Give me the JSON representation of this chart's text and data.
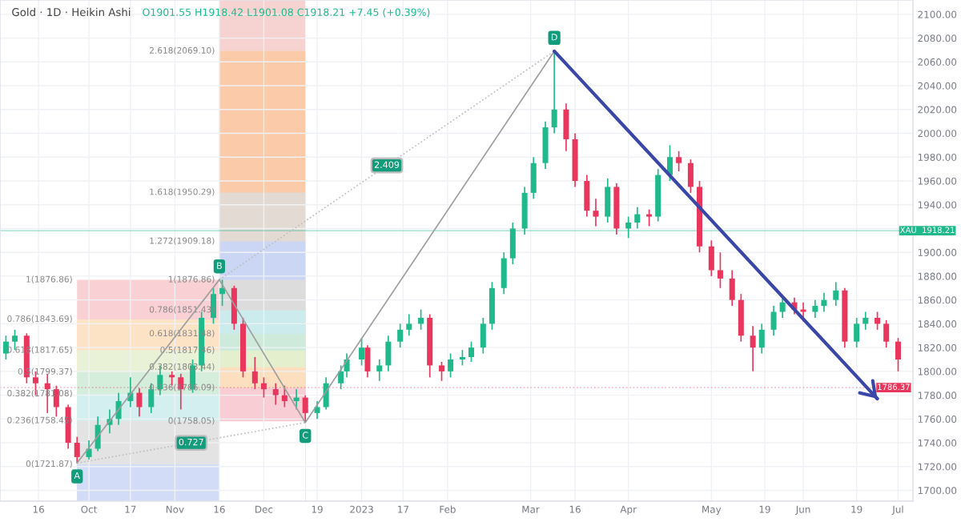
{
  "chart_data": {
    "type": "candlestick",
    "title": "Gold · 1D · Heikin Ashi",
    "subtitle": "O1901.55 H1918.42 L1901.08 C1918.21 +7.45 (+0.39%)",
    "x": [
      "2022-09-05",
      "2022-09-08",
      "2022-09-12",
      "2022-09-15",
      "2022-09-19",
      "2022-09-22",
      "2022-09-26",
      "2022-09-29",
      "2022-10-03",
      "2022-10-06",
      "2022-10-10",
      "2022-10-13",
      "2022-10-17",
      "2022-10-20",
      "2022-10-24",
      "2022-10-27",
      "2022-10-31",
      "2022-11-03",
      "2022-11-07",
      "2022-11-10",
      "2022-11-14",
      "2022-11-17",
      "2022-11-21",
      "2022-11-24",
      "2022-11-28",
      "2022-12-01",
      "2022-12-05",
      "2022-12-08",
      "2022-12-12",
      "2022-12-15",
      "2022-12-19",
      "2022-12-22",
      "2022-12-27",
      "2022-12-29",
      "2023-01-03",
      "2023-01-05",
      "2023-01-09",
      "2023-01-12",
      "2023-01-16",
      "2023-01-19",
      "2023-01-23",
      "2023-01-26",
      "2023-01-30",
      "2023-02-02",
      "2023-02-06",
      "2023-02-09",
      "2023-02-13",
      "2023-02-16",
      "2023-02-20",
      "2023-02-23",
      "2023-02-27",
      "2023-03-02",
      "2023-03-06",
      "2023-03-09",
      "2023-03-13",
      "2023-03-16",
      "2023-03-20",
      "2023-03-23",
      "2023-03-27",
      "2023-03-30",
      "2023-04-03",
      "2023-04-06",
      "2023-04-10",
      "2023-04-13",
      "2023-04-17",
      "2023-04-20",
      "2023-04-24",
      "2023-04-27",
      "2023-05-01",
      "2023-05-04",
      "2023-05-08",
      "2023-05-11",
      "2023-05-15",
      "2023-05-18",
      "2023-05-22",
      "2023-05-25",
      "2023-05-29",
      "2023-06-01",
      "2023-06-05",
      "2023-06-08",
      "2023-06-12",
      "2023-06-15",
      "2023-06-19",
      "2023-06-22",
      "2023-06-26",
      "2023-06-29",
      "2023-07-03"
    ],
    "ohlc": [
      [
        1815,
        1830,
        1810,
        1825
      ],
      [
        1825,
        1835,
        1818,
        1830
      ],
      [
        1830,
        1832,
        1790,
        1795
      ],
      [
        1795,
        1800,
        1780,
        1790
      ],
      [
        1790,
        1798,
        1765,
        1785
      ],
      [
        1785,
        1788,
        1762,
        1770
      ],
      [
        1770,
        1772,
        1735,
        1740
      ],
      [
        1740,
        1745,
        1723,
        1728
      ],
      [
        1728,
        1742,
        1726,
        1735
      ],
      [
        1735,
        1762,
        1733,
        1755
      ],
      [
        1755,
        1768,
        1748,
        1760
      ],
      [
        1760,
        1782,
        1755,
        1775
      ],
      [
        1775,
        1795,
        1770,
        1782
      ],
      [
        1782,
        1786,
        1762,
        1770
      ],
      [
        1770,
        1790,
        1765,
        1785
      ],
      [
        1785,
        1805,
        1780,
        1797
      ],
      [
        1797,
        1800,
        1788,
        1795
      ],
      [
        1795,
        1798,
        1768,
        1785
      ],
      [
        1785,
        1810,
        1782,
        1805
      ],
      [
        1805,
        1850,
        1800,
        1845
      ],
      [
        1845,
        1870,
        1840,
        1865
      ],
      [
        1865,
        1877,
        1855,
        1870
      ],
      [
        1870,
        1872,
        1835,
        1840
      ],
      [
        1840,
        1845,
        1795,
        1800
      ],
      [
        1800,
        1812,
        1785,
        1790
      ],
      [
        1790,
        1795,
        1778,
        1785
      ],
      [
        1785,
        1790,
        1772,
        1780
      ],
      [
        1780,
        1788,
        1770,
        1775
      ],
      [
        1775,
        1785,
        1768,
        1778
      ],
      [
        1778,
        1780,
        1757,
        1765
      ],
      [
        1765,
        1775,
        1760,
        1770
      ],
      [
        1770,
        1795,
        1768,
        1790
      ],
      [
        1790,
        1805,
        1785,
        1800
      ],
      [
        1800,
        1815,
        1795,
        1810
      ],
      [
        1810,
        1828,
        1805,
        1820
      ],
      [
        1820,
        1822,
        1795,
        1800
      ],
      [
        1800,
        1810,
        1792,
        1805
      ],
      [
        1805,
        1830,
        1800,
        1825
      ],
      [
        1825,
        1840,
        1820,
        1835
      ],
      [
        1835,
        1848,
        1830,
        1840
      ],
      [
        1840,
        1852,
        1835,
        1845
      ],
      [
        1845,
        1848,
        1795,
        1805
      ],
      [
        1805,
        1808,
        1792,
        1800
      ],
      [
        1800,
        1815,
        1795,
        1810
      ],
      [
        1810,
        1818,
        1805,
        1812
      ],
      [
        1812,
        1825,
        1808,
        1820
      ],
      [
        1820,
        1845,
        1815,
        1840
      ],
      [
        1840,
        1875,
        1835,
        1870
      ],
      [
        1870,
        1900,
        1865,
        1895
      ],
      [
        1895,
        1925,
        1890,
        1920
      ],
      [
        1920,
        1955,
        1915,
        1950
      ],
      [
        1950,
        1980,
        1945,
        1975
      ],
      [
        1975,
        2010,
        1970,
        2005
      ],
      [
        2005,
        2069,
        2000,
        2020
      ],
      [
        2020,
        2025,
        1985,
        1995
      ],
      [
        1995,
        2000,
        1955,
        1960
      ],
      [
        1960,
        1965,
        1930,
        1935
      ],
      [
        1935,
        1945,
        1922,
        1930
      ],
      [
        1930,
        1962,
        1925,
        1955
      ],
      [
        1955,
        1958,
        1915,
        1920
      ],
      [
        1920,
        1930,
        1912,
        1925
      ],
      [
        1925,
        1938,
        1920,
        1932
      ],
      [
        1932,
        1936,
        1922,
        1930
      ],
      [
        1930,
        1970,
        1926,
        1965
      ],
      [
        1965,
        1990,
        1960,
        1980
      ],
      [
        1980,
        1985,
        1968,
        1975
      ],
      [
        1975,
        1978,
        1950,
        1955
      ],
      [
        1955,
        1960,
        1900,
        1905
      ],
      [
        1905,
        1910,
        1880,
        1885
      ],
      [
        1885,
        1900,
        1870,
        1878
      ],
      [
        1878,
        1885,
        1855,
        1860
      ],
      [
        1860,
        1865,
        1825,
        1830
      ],
      [
        1830,
        1838,
        1800,
        1820
      ],
      [
        1820,
        1840,
        1815,
        1835
      ],
      [
        1835,
        1855,
        1830,
        1850
      ],
      [
        1850,
        1862,
        1845,
        1858
      ],
      [
        1858,
        1862,
        1848,
        1852
      ],
      [
        1852,
        1858,
        1842,
        1850
      ],
      [
        1850,
        1860,
        1845,
        1855
      ],
      [
        1855,
        1866,
        1850,
        1860
      ],
      [
        1860,
        1875,
        1855,
        1868
      ],
      [
        1868,
        1870,
        1820,
        1825
      ],
      [
        1825,
        1845,
        1820,
        1840
      ],
      [
        1840,
        1850,
        1835,
        1845
      ],
      [
        1845,
        1850,
        1835,
        1840
      ],
      [
        1840,
        1843,
        1820,
        1825
      ],
      [
        1825,
        1828,
        1800,
        1810
      ]
    ],
    "colors": [
      "#1fb98c",
      "#1fb98c",
      "#e8365d",
      "#e8365d",
      "#e8365d",
      "#e8365d",
      "#e8365d",
      "#e8365d",
      "#1fb98c",
      "#1fb98c",
      "#1fb98c",
      "#1fb98c",
      "#1fb98c",
      "#e8365d",
      "#1fb98c",
      "#1fb98c",
      "#e8365d",
      "#e8365d",
      "#1fb98c",
      "#1fb98c",
      "#1fb98c",
      "#1fb98c",
      "#e8365d",
      "#e8365d",
      "#e8365d",
      "#e8365d",
      "#e8365d",
      "#e8365d",
      "#1fb98c",
      "#e8365d",
      "#1fb98c",
      "#1fb98c",
      "#1fb98c",
      "#1fb98c",
      "#1fb98c",
      "#e8365d",
      "#1fb98c",
      "#1fb98c",
      "#1fb98c",
      "#1fb98c",
      "#1fb98c",
      "#e8365d",
      "#e8365d",
      "#1fb98c",
      "#1fb98c",
      "#1fb98c",
      "#1fb98c",
      "#1fb98c",
      "#1fb98c",
      "#1fb98c",
      "#1fb98c",
      "#1fb98c",
      "#1fb98c",
      "#1fb98c",
      "#e8365d",
      "#e8365d",
      "#e8365d",
      "#e8365d",
      "#1fb98c",
      "#e8365d",
      "#1fb98c",
      "#1fb98c",
      "#e8365d",
      "#1fb98c",
      "#1fb98c",
      "#e8365d",
      "#e8365d",
      "#e8365d",
      "#e8365d",
      "#e8365d",
      "#e8365d",
      "#e8365d",
      "#e8365d",
      "#1fb98c",
      "#1fb98c",
      "#1fb98c",
      "#e8365d",
      "#e8365d",
      "#1fb98c",
      "#1fb98c",
      "#1fb98c",
      "#e8365d",
      "#1fb98c",
      "#1fb98c",
      "#e8365d",
      "#e8365d",
      "#e8365d"
    ],
    "series": [
      {
        "type": "area",
        "name": "1(1876.86)",
        "x": [
          "2022-09-29",
          "2022-11-16"
        ],
        "values": [
          1876.86,
          1876.86
        ],
        "color": "#f9d0d3"
      },
      {
        "type": "area",
        "name": "0.786(1843.69)",
        "x": [
          "2022-09-29",
          "2022-11-16"
        ],
        "values": [
          1843.69,
          1843.69
        ],
        "color": "#fde3c6"
      },
      {
        "type": "area",
        "name": "0.618(1817.65)",
        "x": [
          "2022-09-29",
          "2022-11-16"
        ],
        "values": [
          1817.65,
          1817.65
        ],
        "color": "#e9f2d6"
      },
      {
        "type": "area",
        "name": "0.5(1799.37)",
        "x": [
          "2022-09-29",
          "2022-11-16"
        ],
        "values": [
          1799.37,
          1799.37
        ],
        "color": "#d5eedb"
      },
      {
        "type": "area",
        "name": "0.382(1781.08)",
        "x": [
          "2022-09-29",
          "2022-11-16"
        ],
        "values": [
          1781.08,
          1781.08
        ],
        "color": "#d3efef"
      },
      {
        "type": "area",
        "name": "0.236(1758.45)",
        "x": [
          "2022-09-29",
          "2022-11-16"
        ],
        "values": [
          1758.45,
          1758.45
        ],
        "color": "#e3e3e3"
      },
      {
        "type": "area",
        "name": "0(1721.87)",
        "x": [
          "2022-09-29",
          "2022-11-16"
        ],
        "values": [
          1721.87,
          1721.87
        ],
        "color": "#d3dcf7"
      },
      {
        "type": "area",
        "x": [
          "2022-11-16",
          "2022-12-15"
        ],
        "values": [
          2112,
          2112
        ],
        "color": "#f6d2d0"
      },
      {
        "type": "area",
        "name": "2.618(2069.10)",
        "x": [
          "2022-11-16",
          "2022-12-15"
        ],
        "values": [
          2069.1,
          2069.1
        ],
        "color": "#fbcaa9"
      },
      {
        "type": "area",
        "name": "1.618(1950.29)",
        "x": [
          "2022-11-16",
          "2022-12-15"
        ],
        "values": [
          1950.29,
          1950.29
        ],
        "color": "#e2dad3"
      },
      {
        "type": "area",
        "name": "1.272(1909.18)",
        "x": [
          "2022-11-16",
          "2022-12-15"
        ],
        "values": [
          1909.18,
          1909.18
        ],
        "color": "#cbd6f5"
      },
      {
        "type": "area",
        "name": "1(1876.86)",
        "x": [
          "2022-11-16",
          "2022-12-15"
        ],
        "values": [
          1876.86,
          1876.86
        ],
        "color": "#dcdcdc"
      },
      {
        "type": "area",
        "name": "0.786(1851.43)",
        "x": [
          "2022-11-16",
          "2022-12-15"
        ],
        "values": [
          1851.43,
          1851.43
        ],
        "color": "#cbebed"
      },
      {
        "type": "area",
        "name": "0.618(1831.48)",
        "x": [
          "2022-11-16",
          "2022-12-15"
        ],
        "values": [
          1831.48,
          1831.48
        ],
        "color": "#cdeada"
      },
      {
        "type": "area",
        "name": "0.5(1817.46)",
        "x": [
          "2022-11-16",
          "2022-12-15"
        ],
        "values": [
          1817.46,
          1817.46
        ],
        "color": "#e3efcd"
      },
      {
        "type": "area",
        "name": "0.382(1803.44)",
        "x": [
          "2022-11-16",
          "2022-12-15"
        ],
        "values": [
          1803.44,
          1803.44
        ],
        "color": "#fbdfbe"
      },
      {
        "type": "area",
        "name": "0.236(1786.09)",
        "x": [
          "2022-11-16",
          "2022-12-15"
        ],
        "values": [
          1786.09,
          1786.09
        ],
        "color": "#f8cdd3"
      },
      {
        "type": "area",
        "name": "0(1758.05)",
        "x": [
          "2022-11-16",
          "2022-12-15"
        ],
        "values": [
          1758.05,
          1758.05
        ],
        "color": "#ffffff"
      },
      {
        "type": "line",
        "name": "0.727",
        "x": [
          "2022-09-29",
          "2022-12-15"
        ],
        "values": [
          1723,
          1757
        ],
        "color": "#bdbdbd",
        "line_style": "dotted"
      },
      {
        "type": "line",
        "name": "2.409",
        "x": [
          "2022-11-16",
          "2023-03-09"
        ],
        "values": [
          1877,
          2069
        ],
        "color": "#bdbdbd",
        "line_style": "dotted"
      },
      {
        "type": "line",
        "x": [
          "2022-09-29",
          "2022-11-16",
          "2022-12-15",
          "2023-03-09"
        ],
        "values": [
          1723,
          1877,
          1757,
          2069
        ],
        "color": "#9e9e9e",
        "line_style": "solid",
        "value_labels": [
          "A",
          "B",
          "C",
          "D"
        ]
      },
      {
        "type": "line",
        "x": [
          "2023-03-09",
          "2023-06-26"
        ],
        "values": [
          2069,
          1777
        ],
        "color": "#3a46a8",
        "line_style": "solid"
      }
    ],
    "ref_lines": [
      {
        "axis": "y",
        "value": 1918.21,
        "label": "XAU  1918.21",
        "color": "#1fb98c",
        "line_style": "solid"
      },
      {
        "axis": "y",
        "value": 1786.37,
        "label": "1786.37",
        "color": "#e8365d",
        "line_style": "dotted"
      }
    ],
    "xlim": [
      "2022-09-03",
      "2023-07-08"
    ],
    "xticks": [
      {
        "value": "2022-09-16",
        "label": "16"
      },
      {
        "value": "2022-10-03",
        "label": "Oct"
      },
      {
        "value": "2022-10-17",
        "label": "17"
      },
      {
        "value": "2022-11-01",
        "label": "Nov"
      },
      {
        "value": "2022-11-16",
        "label": "16"
      },
      {
        "value": "2022-12-01",
        "label": "Dec"
      },
      {
        "value": "2022-12-19",
        "label": "19"
      },
      {
        "value": "2023-01-03",
        "label": "2023"
      },
      {
        "value": "2023-01-17",
        "label": "17"
      },
      {
        "value": "2023-02-01",
        "label": "Feb"
      },
      {
        "value": "2023-03-01",
        "label": "Mar"
      },
      {
        "value": "2023-03-16",
        "label": "16"
      },
      {
        "value": "2023-04-03",
        "label": "Apr"
      },
      {
        "value": "2023-05-01",
        "label": "May"
      },
      {
        "value": "2023-05-19",
        "label": "19"
      },
      {
        "value": "2023-06-01",
        "label": "Jun"
      },
      {
        "value": "2023-06-19",
        "label": "19"
      },
      {
        "value": "2023-07-03",
        "label": "Jul"
      }
    ],
    "ylim": [
      1691,
      2112
    ],
    "yticks": [
      {
        "value": 1700,
        "label": "1700.00"
      },
      {
        "value": 1720,
        "label": "1720.00"
      },
      {
        "value": 1740,
        "label": "1740.00"
      },
      {
        "value": 1760,
        "label": "1760.00"
      },
      {
        "value": 1780,
        "label": "1780.00"
      },
      {
        "value": 1800,
        "label": "1800.00"
      },
      {
        "value": 1820,
        "label": "1820.00"
      },
      {
        "value": 1840,
        "label": "1840.00"
      },
      {
        "value": 1860,
        "label": "1860.00"
      },
      {
        "value": 1880,
        "label": "1880.00"
      },
      {
        "value": 1900,
        "label": "1900.00"
      },
      {
        "value": 1920,
        "label": null
      },
      {
        "value": 1940,
        "label": "1940.00"
      },
      {
        "value": 1960,
        "label": "1960.00"
      },
      {
        "value": 1980,
        "label": "1980.00"
      },
      {
        "value": 2000,
        "label": "2000.00"
      },
      {
        "value": 2020,
        "label": "2020.00"
      },
      {
        "value": 2040,
        "label": "2040.00"
      },
      {
        "value": 2060,
        "label": "2060.00"
      },
      {
        "value": 2080,
        "label": "2080.00"
      },
      {
        "value": 2100,
        "label": "2100.00"
      }
    ],
    "grid": true
  }
}
